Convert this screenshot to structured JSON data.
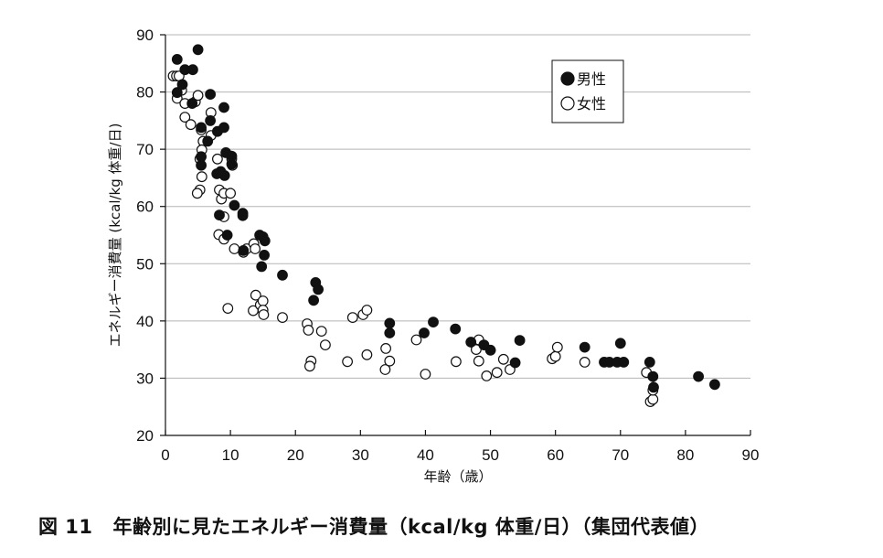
{
  "caption": {
    "figure_number": "図 11",
    "title": "年齢別に見たエネルギー消費量（kcal/kg 体重/日）（集団代表値）"
  },
  "chart_data": {
    "type": "scatter",
    "xlabel": "年齢（歳）",
    "ylabel": "エネルギー消費量 (kcal/kg 体重/日)",
    "xlim": [
      0,
      90
    ],
    "ylim": [
      20,
      90
    ],
    "x_ticks": [
      0,
      10,
      20,
      30,
      40,
      50,
      60,
      70,
      80,
      90
    ],
    "y_ticks": [
      20,
      30,
      40,
      50,
      60,
      70,
      80,
      90
    ],
    "grid": "horizontal",
    "legend_position": "top-right",
    "series": [
      {
        "name": "男性",
        "marker": "filled-circle",
        "color": "#111111",
        "points": [
          [
            1.8,
            85.7
          ],
          [
            1.8,
            79.9
          ],
          [
            3.0,
            83.9
          ],
          [
            4.2,
            83.9
          ],
          [
            5.0,
            87.4
          ],
          [
            2.6,
            81.3
          ],
          [
            4.1,
            78.0
          ],
          [
            5.5,
            73.8
          ],
          [
            6.5,
            71.4
          ],
          [
            6.9,
            79.6
          ],
          [
            6.9,
            75.0
          ],
          [
            8.0,
            73.1
          ],
          [
            9.0,
            77.3
          ],
          [
            9.0,
            73.8
          ],
          [
            5.5,
            68.7
          ],
          [
            5.5,
            67.2
          ],
          [
            9.3,
            69.4
          ],
          [
            10.2,
            68.8
          ],
          [
            10.2,
            67.4
          ],
          [
            9.1,
            65.4
          ],
          [
            7.9,
            65.7
          ],
          [
            8.5,
            66.1
          ],
          [
            10.6,
            60.2
          ],
          [
            8.3,
            58.5
          ],
          [
            11.9,
            58.8
          ],
          [
            11.9,
            58.4
          ],
          [
            9.5,
            55.0
          ],
          [
            12.0,
            52.3
          ],
          [
            14.5,
            55.0
          ],
          [
            15.0,
            54.7
          ],
          [
            15.3,
            54.0
          ],
          [
            15.2,
            51.5
          ],
          [
            14.8,
            49.5
          ],
          [
            18.0,
            48.0
          ],
          [
            23.1,
            46.7
          ],
          [
            23.5,
            45.5
          ],
          [
            22.8,
            43.6
          ],
          [
            34.5,
            39.6
          ],
          [
            34.5,
            37.9
          ],
          [
            39.8,
            37.9
          ],
          [
            41.2,
            39.8
          ],
          [
            44.6,
            38.6
          ],
          [
            47.0,
            36.3
          ],
          [
            49.0,
            35.8
          ],
          [
            50.0,
            34.9
          ],
          [
            53.8,
            32.7
          ],
          [
            54.5,
            36.6
          ],
          [
            64.5,
            35.4
          ],
          [
            67.5,
            32.8
          ],
          [
            68.3,
            32.8
          ],
          [
            69.5,
            32.8
          ],
          [
            70.0,
            36.1
          ],
          [
            70.5,
            32.8
          ],
          [
            74.5,
            32.8
          ],
          [
            75.0,
            30.3
          ],
          [
            75.1,
            28.4
          ],
          [
            82.0,
            30.3
          ],
          [
            84.5,
            28.9
          ]
        ]
      },
      {
        "name": "女性",
        "marker": "open-circle",
        "color": "#111111",
        "points": [
          [
            1.2,
            82.8
          ],
          [
            1.7,
            82.8
          ],
          [
            2.1,
            82.8
          ],
          [
            1.8,
            78.9
          ],
          [
            2.5,
            80.3
          ],
          [
            3.0,
            78.0
          ],
          [
            3.0,
            75.6
          ],
          [
            3.9,
            74.3
          ],
          [
            4.6,
            78.3
          ],
          [
            5.0,
            79.4
          ],
          [
            5.5,
            73.4
          ],
          [
            5.8,
            71.4
          ],
          [
            5.6,
            69.9
          ],
          [
            5.3,
            68.3
          ],
          [
            5.6,
            65.2
          ],
          [
            5.3,
            62.9
          ],
          [
            4.9,
            62.3
          ],
          [
            7.0,
            76.4
          ],
          [
            7.0,
            72.4
          ],
          [
            8.0,
            68.3
          ],
          [
            8.3,
            62.9
          ],
          [
            8.6,
            61.3
          ],
          [
            9.0,
            62.3
          ],
          [
            9.0,
            58.2
          ],
          [
            10.0,
            62.3
          ],
          [
            10.2,
            68.3
          ],
          [
            10.3,
            67.2
          ],
          [
            8.2,
            55.1
          ],
          [
            9.0,
            54.3
          ],
          [
            10.6,
            52.6
          ],
          [
            12.0,
            52.0
          ],
          [
            12.5,
            52.6
          ],
          [
            13.6,
            53.5
          ],
          [
            13.8,
            52.6
          ],
          [
            9.6,
            42.2
          ],
          [
            13.9,
            44.5
          ],
          [
            13.5,
            41.8
          ],
          [
            14.6,
            42.8
          ],
          [
            15.0,
            43.5
          ],
          [
            15.0,
            41.9
          ],
          [
            15.1,
            41.1
          ],
          [
            18.0,
            40.6
          ],
          [
            21.8,
            39.5
          ],
          [
            22.0,
            38.4
          ],
          [
            24.0,
            38.2
          ],
          [
            22.4,
            33.0
          ],
          [
            22.2,
            32.1
          ],
          [
            24.6,
            35.8
          ],
          [
            28.0,
            32.9
          ],
          [
            28.8,
            40.6
          ],
          [
            30.4,
            41.1
          ],
          [
            31.0,
            41.9
          ],
          [
            31.0,
            34.1
          ],
          [
            33.9,
            35.2
          ],
          [
            33.8,
            31.5
          ],
          [
            34.5,
            33.0
          ],
          [
            38.6,
            36.7
          ],
          [
            40.0,
            30.7
          ],
          [
            44.7,
            32.9
          ],
          [
            47.8,
            35.0
          ],
          [
            48.2,
            36.7
          ],
          [
            48.2,
            33.0
          ],
          [
            49.4,
            30.4
          ],
          [
            51.0,
            31.0
          ],
          [
            52.0,
            33.3
          ],
          [
            53.0,
            31.5
          ],
          [
            59.5,
            33.4
          ],
          [
            60.0,
            33.8
          ],
          [
            60.3,
            35.4
          ],
          [
            64.5,
            32.8
          ],
          [
            74.0,
            31.0
          ],
          [
            74.6,
            25.9
          ],
          [
            75.0,
            26.3
          ],
          [
            75.0,
            27.9
          ]
        ]
      }
    ]
  }
}
